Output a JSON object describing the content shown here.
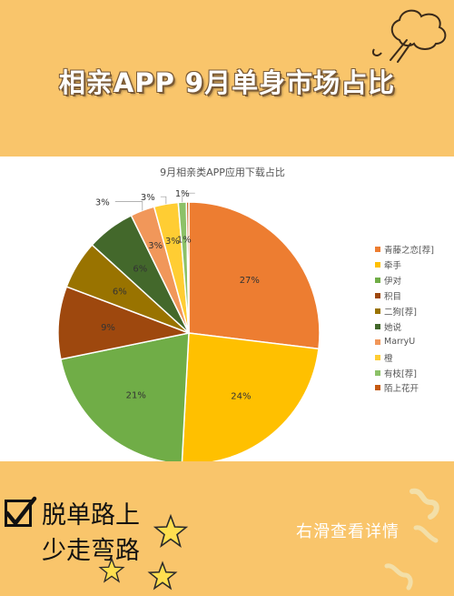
{
  "headline": "相亲APP 9月单身市场占比",
  "chart_data": {
    "type": "pie",
    "title": "9月相亲类APP应用下载占比",
    "slices": [
      {
        "name": "青藤之恋[荐]",
        "value": 27,
        "label": "27%",
        "color": "#ed7d31"
      },
      {
        "name": "牵手",
        "value": 24,
        "label": "24%",
        "color": "#ffc000"
      },
      {
        "name": "伊对",
        "value": 21,
        "label": "21%",
        "color": "#70ad47"
      },
      {
        "name": "积目",
        "value": 9,
        "label": "9%",
        "color": "#9e480e"
      },
      {
        "name": "二狗[荐]",
        "value": 6,
        "label": "6%",
        "color": "#997300"
      },
      {
        "name": "她说",
        "value": 6,
        "label": "6%",
        "color": "#43682b"
      },
      {
        "name": "MarryU",
        "value": 3,
        "label": "3%",
        "color": "#f1975a"
      },
      {
        "name": "橙",
        "value": 3,
        "label": "3%",
        "color": "#ffcd33"
      },
      {
        "name": "有枝[荐]",
        "value": 1,
        "label": "1%",
        "color": "#8cc168"
      },
      {
        "name": "陌上花开",
        "value": 0.3,
        "label": "",
        "color": "#c55a11"
      }
    ],
    "legend_position": "right"
  },
  "bottom": {
    "line1": "脱单路上",
    "line2": "少走弯路",
    "swipe_hint": "右滑查看详情"
  },
  "colors": {
    "background": "#f9c56b",
    "panel": "#ffffff"
  }
}
